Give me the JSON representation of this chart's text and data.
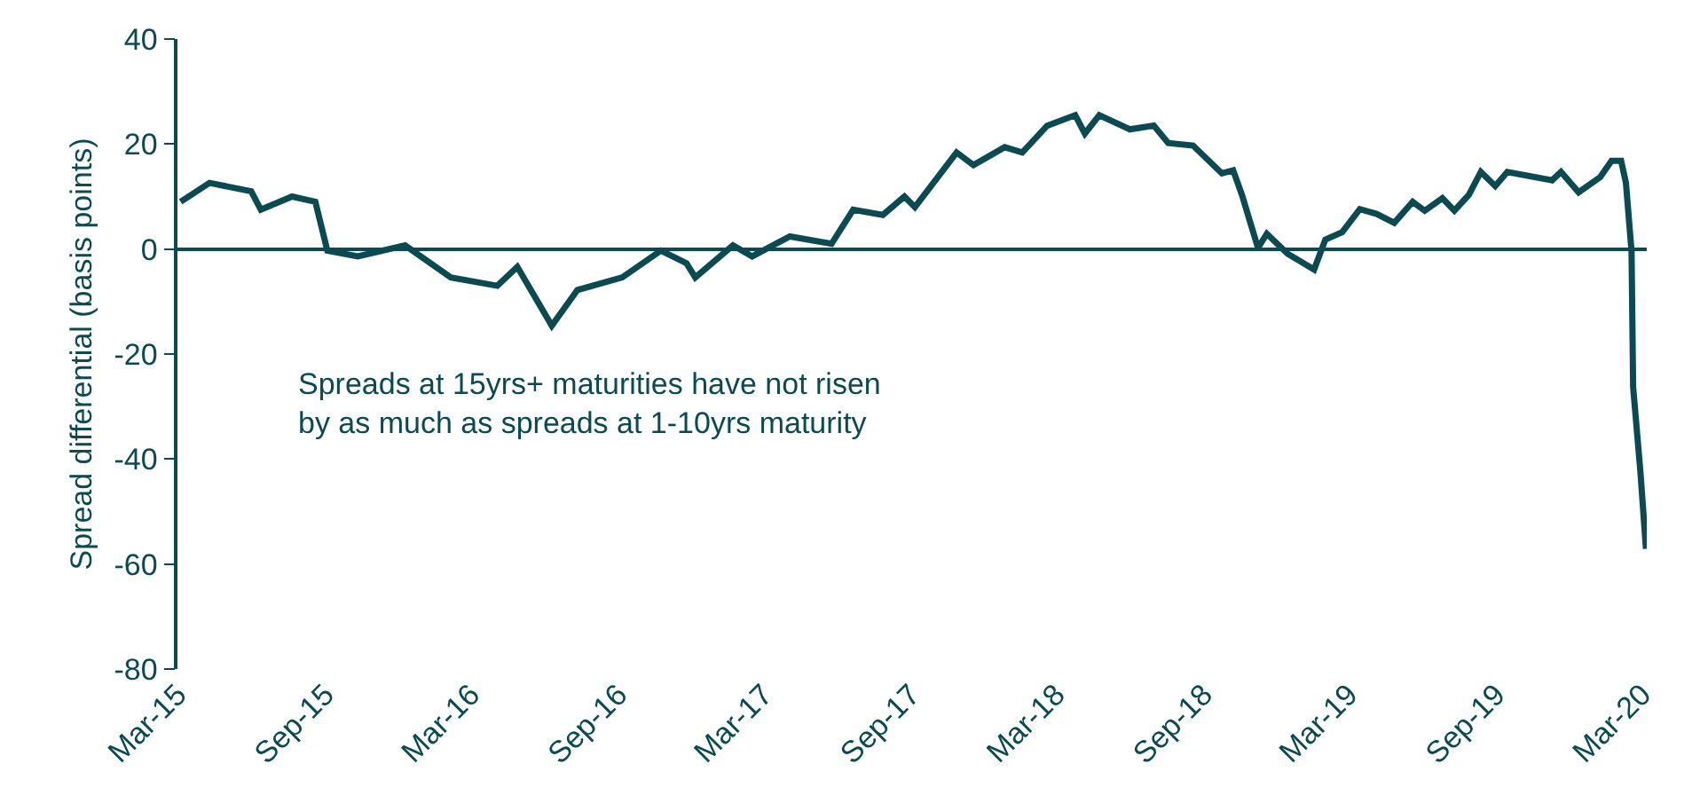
{
  "chart_data": {
    "type": "line",
    "ylabel": "Spread differential (basis points)",
    "annotations": [
      "Spreads at 15yrs+ maturities have not risen\nby as much as spreads at 1-10yrs maturity"
    ],
    "x": [
      "2015-03-05",
      "2015-04-10",
      "2015-06-01",
      "2015-06-13",
      "2015-07-22",
      "2015-08-20",
      "2015-09-04",
      "2015-10-12",
      "2015-12-10",
      "2016-02-05",
      "2016-04-03",
      "2016-04-28",
      "2016-06-10",
      "2016-07-12",
      "2016-09-06",
      "2016-10-24",
      "2016-11-25",
      "2016-12-06",
      "2017-01-22",
      "2017-02-15",
      "2017-04-03",
      "2017-05-25",
      "2017-06-21",
      "2017-07-28",
      "2017-08-24",
      "2017-09-06",
      "2017-10-28",
      "2017-11-18",
      "2017-12-27",
      "2018-01-18",
      "2018-02-18",
      "2018-03-25",
      "2018-04-06",
      "2018-04-24",
      "2018-06-01",
      "2018-07-01",
      "2018-07-19",
      "2018-08-19",
      "2018-09-24",
      "2018-10-08",
      "2018-10-19",
      "2018-11-08",
      "2018-11-19",
      "2018-12-15",
      "2019-01-17",
      "2019-01-31",
      "2019-02-21",
      "2019-03-15",
      "2019-04-05",
      "2019-04-27",
      "2019-05-20",
      "2019-06-04",
      "2019-06-26",
      "2019-07-11",
      "2019-07-29",
      "2019-08-13",
      "2019-08-31",
      "2019-09-15",
      "2019-11-10",
      "2019-11-21",
      "2019-12-13",
      "2020-01-09",
      "2020-01-23",
      "2020-02-04",
      "2020-02-10",
      "2020-02-17",
      "2020-02-19",
      "2020-02-28",
      "2020-03-06"
    ],
    "series": [
      {
        "color": "#0b4a50",
        "values": [
          9,
          12.6,
          11,
          7.5,
          10,
          9,
          -0.3,
          -1.4,
          0.7,
          -5.4,
          -7,
          -3.4,
          -14.6,
          -7.8,
          -5.4,
          -0.3,
          -2.7,
          -5.4,
          0.7,
          -1.4,
          2.4,
          1,
          7.5,
          6.5,
          10,
          8,
          18.4,
          16,
          19.4,
          18.4,
          23.5,
          25.5,
          22,
          25.5,
          22.8,
          23.5,
          20.2,
          19.7,
          14.4,
          15,
          10.3,
          0.2,
          2.9,
          -0.9,
          -3.9,
          1.8,
          3.2,
          7.6,
          6.7,
          5,
          9,
          7.3,
          9.7,
          7.3,
          10.3,
          14.7,
          12,
          14.7,
          13.1,
          14.7,
          10.8,
          13.7,
          16.8,
          16.8,
          12.6,
          -0.4,
          -26.3,
          -42.3,
          -57.1
        ]
      }
    ],
    "xlim": [
      "2015-03-01",
      "2020-03-07"
    ],
    "xticks": [
      {
        "value": "2015-03-01",
        "label": "Mar-15"
      },
      {
        "value": "2015-09-01",
        "label": "Sep-15"
      },
      {
        "value": "2016-03-01",
        "label": "Mar-16"
      },
      {
        "value": "2016-09-01",
        "label": "Sep-16"
      },
      {
        "value": "2017-03-01",
        "label": "Mar-17"
      },
      {
        "value": "2017-09-01",
        "label": "Sep-17"
      },
      {
        "value": "2018-03-01",
        "label": "Mar-18"
      },
      {
        "value": "2018-09-01",
        "label": "Sep-18"
      },
      {
        "value": "2019-03-01",
        "label": "Mar-19"
      },
      {
        "value": "2019-09-01",
        "label": "Sep-19"
      },
      {
        "value": "2020-03-01",
        "label": "Mar-20"
      }
    ],
    "ylim": [
      -80,
      40
    ],
    "yticks": [
      -80,
      -60,
      -40,
      -20,
      0,
      20,
      40
    ],
    "legend": false,
    "marker": "none",
    "line_style": "solid"
  }
}
